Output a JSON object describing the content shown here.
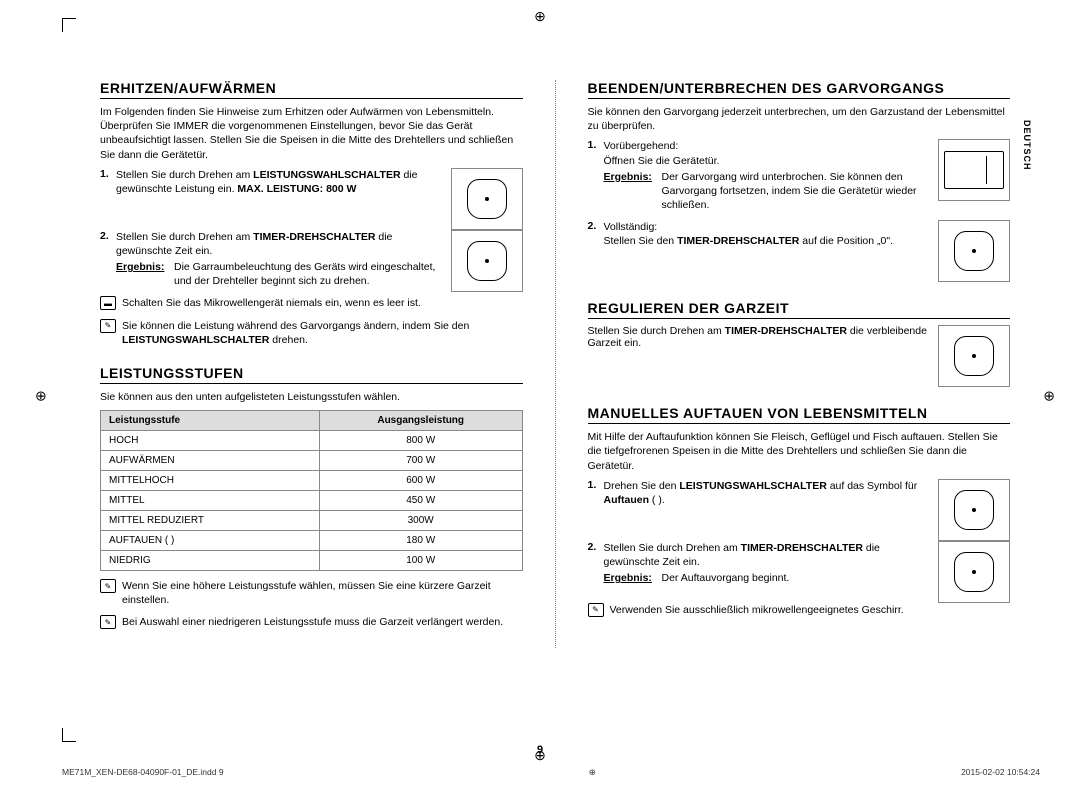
{
  "lang_tab": "DEUTSCH",
  "page_num": "9",
  "footer_left": "ME71M_XEN-DE68-04090F-01_DE.indd   9",
  "footer_right": "2015-02-02   10:54:24",
  "col_left": {
    "sec1": {
      "title": "ERHITZEN/AUFWÄRMEN",
      "intro": "Im Folgenden finden Sie Hinweise zum Erhitzen oder Aufwärmen von Lebensmitteln. Überprüfen Sie IMMER die vorgenommenen Einstellungen, bevor Sie das Gerät unbeaufsichtigt lassen. Stellen Sie die Speisen in die Mitte des Drehtellers und schließen Sie dann die Gerätetür.",
      "step1_num": "1.",
      "step1_a": "Stellen Sie durch Drehen am ",
      "step1_b": "LEISTUNGSWAHLSCHALTER",
      "step1_c": " die gewünschte Leistung ein. ",
      "step1_d": "MAX. LEISTUNG: 800 W",
      "step2_num": "2.",
      "step2_a": "Stellen Sie durch Drehen am ",
      "step2_b": "TIMER-DREHSCHALTER",
      "step2_c": " die gewünschte Zeit ein.",
      "step2_res_label": "Ergebnis:",
      "step2_res": "Die Garraumbeleuchtung des Geräts wird eingeschaltet, und der Drehteller beginnt sich zu drehen.",
      "note1": "Schalten Sie das Mikrowellengerät niemals ein, wenn es leer ist.",
      "note2_a": "Sie können die Leistung während des Garvorgangs ändern, indem Sie den ",
      "note2_b": "LEISTUNGSWAHLSCHALTER",
      "note2_c": " drehen."
    },
    "sec2": {
      "title": "LEISTUNGSSTUFEN",
      "intro": "Sie können aus den unten aufgelisteten Leistungsstufen wählen.",
      "th1": "Leistungsstufe",
      "th2": "Ausgangsleistung",
      "rows": [
        [
          "HOCH",
          "800 W"
        ],
        [
          "AUFWÄRMEN",
          "700 W"
        ],
        [
          "MITTELHOCH",
          "600 W"
        ],
        [
          "MITTEL",
          "450 W"
        ],
        [
          "MITTEL REDUZIERT",
          "300W"
        ],
        [
          "AUFTAUEN ( )",
          "180 W"
        ],
        [
          "NIEDRIG",
          "100 W"
        ]
      ],
      "note1": "Wenn Sie eine höhere Leistungsstufe wählen, müssen Sie eine kürzere Garzeit einstellen.",
      "note2": "Bei Auswahl einer niedrigeren Leistungsstufe muss die Garzeit verlängert werden."
    }
  },
  "col_right": {
    "sec1": {
      "title": "BEENDEN/UNTERBRECHEN DES GARVORGANGS",
      "intro": "Sie können den Garvorgang jederzeit unterbrechen, um den Garzustand der Lebensmittel zu überprüfen.",
      "step1_num": "1.",
      "step1_a": "Vorübergehend:",
      "step1_b": "Öffnen Sie die Gerätetür.",
      "step1_res_label": "Ergebnis:",
      "step1_res": "Der Garvorgang wird unterbrochen. Sie können den Garvorgang fortsetzen, indem Sie die Gerätetür wieder schließen.",
      "step2_num": "2.",
      "step2_a": "Vollständig:",
      "step2_b_a": "Stellen Sie den ",
      "step2_b_b": "TIMER-DREHSCHALTER",
      "step2_b_c": " auf die Position „0\"."
    },
    "sec2": {
      "title": "REGULIEREN DER GARZEIT",
      "text_a": "Stellen Sie durch Drehen am ",
      "text_b": "TIMER-DREHSCHALTER",
      "text_c": " die verbleibende Garzeit ein."
    },
    "sec3": {
      "title": "MANUELLES AUFTAUEN VON LEBENSMITTELN",
      "intro": "Mit Hilfe der Auftaufunktion können Sie Fleisch, Geflügel und Fisch auftauen. Stellen Sie die tiefgefrorenen Speisen in die Mitte des Drehtellers und schließen Sie dann die Gerätetür.",
      "step1_num": "1.",
      "step1_a": "Drehen Sie den ",
      "step1_b": "LEISTUNGSWAHLSCHALTER",
      "step1_c": " auf das Symbol für ",
      "step1_d": "Auftauen",
      "step1_e": " ( ).",
      "step2_num": "2.",
      "step2_a": "Stellen Sie durch Drehen am ",
      "step2_b": "TIMER-DREHSCHALTER",
      "step2_c": " die gewünschte Zeit ein.",
      "step2_res_label": "Ergebnis:",
      "step2_res": "Der Auftauvorgang beginnt.",
      "note": "Verwenden Sie ausschließlich mikrowellengeeignetes Geschirr."
    }
  }
}
